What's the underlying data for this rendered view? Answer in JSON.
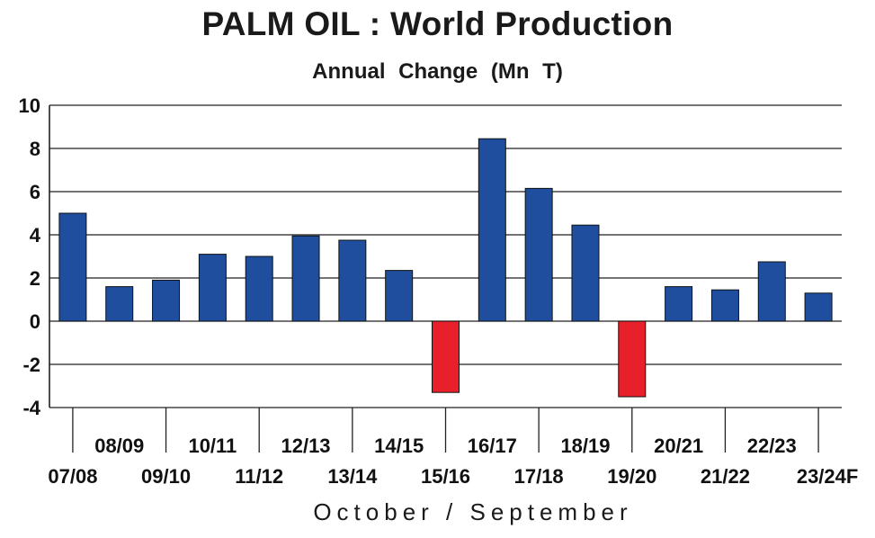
{
  "chart_data": {
    "type": "bar",
    "title": "PALM OIL : World  Production",
    "subtitle": "Annual  Change   (Mn T)",
    "xlabel": "October / September",
    "ylabel": "",
    "ylim": [
      -4,
      10
    ],
    "yticks": [
      "10",
      "8",
      "6",
      "4",
      "2",
      "0",
      "-2",
      "-4"
    ],
    "grid": true,
    "categories": [
      "07/08",
      "08/09",
      "09/10",
      "10/11",
      "11/12",
      "12/13",
      "13/14",
      "14/15",
      "15/16",
      "16/17",
      "17/18",
      "18/19",
      "19/20",
      "20/21",
      "21/22",
      "22/23",
      "23/24F"
    ],
    "values": [
      5.0,
      1.6,
      1.9,
      3.1,
      3.0,
      3.95,
      3.75,
      2.35,
      -3.3,
      8.45,
      6.15,
      4.45,
      -3.5,
      1.6,
      1.45,
      2.75,
      1.3
    ],
    "colors": {
      "positive": "#1f4e9e",
      "negative": "#e8202a",
      "grid": "#222222"
    }
  }
}
